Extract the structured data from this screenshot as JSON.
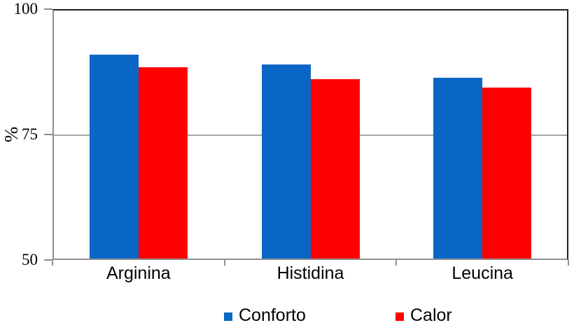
{
  "chart_data": {
    "type": "bar",
    "title": "",
    "xlabel": "",
    "ylabel": "%",
    "categories": [
      "Arginina",
      "Histidina",
      "Leucina"
    ],
    "series": [
      {
        "name": "Conforto",
        "color": "#0A66C4",
        "values": [
          90.6,
          88.7,
          86.0
        ]
      },
      {
        "name": "Calor",
        "color": "#FF0000",
        "values": [
          88.1,
          85.8,
          84.1
        ]
      }
    ],
    "ylim": [
      50,
      100
    ],
    "yticks": [
      100,
      75,
      50
    ],
    "grid": "horizontal",
    "legend_position": "bottom-center",
    "colors": {
      "plot_border_dark": "#1F1F1F",
      "axis_gray": "#8F8F8F",
      "gridline_gray": "#A6A6A6",
      "background": "#FFFFFF",
      "text": "#000000"
    }
  }
}
